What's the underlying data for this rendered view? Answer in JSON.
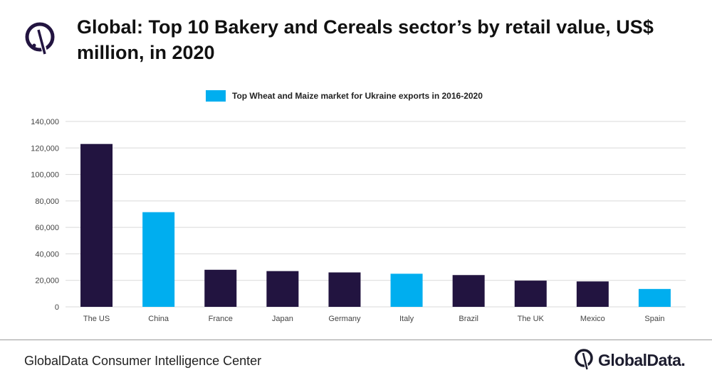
{
  "title": "Global: Top 10 Bakery and Cereals sector’s by retail value, US$ million, in 2020",
  "footer": "GlobalData Consumer Intelligence Center",
  "brand": "GlobalData.",
  "colors": {
    "primary": "#221440",
    "highlight": "#00aeef"
  },
  "icons": {
    "logo": "globaldata-logo-icon"
  },
  "chart_data": {
    "type": "bar",
    "title": "Global: Top 10 Bakery and Cereals sector’s by retail value, US$ million, in 2020",
    "xlabel": "",
    "ylabel": "",
    "ylim": [
      0,
      140000
    ],
    "yticks": [
      0,
      20000,
      40000,
      60000,
      80000,
      100000,
      120000,
      140000
    ],
    "ytick_labels": [
      "0",
      "20,000",
      "40,000",
      "60,000",
      "80,000",
      "100,000",
      "120,000",
      "140,000"
    ],
    "grid": true,
    "legend": {
      "label": "Top Wheat and Maize market for Ukraine exports in 2016-2020",
      "position": "top-center"
    },
    "categories": [
      "The US",
      "China",
      "France",
      "Japan",
      "Germany",
      "Italy",
      "Brazil",
      "The UK",
      "Mexico",
      "Spain"
    ],
    "values": [
      123000,
      71500,
      28000,
      27000,
      26000,
      25000,
      24000,
      19800,
      19200,
      13500
    ],
    "highlighted": [
      false,
      true,
      false,
      false,
      false,
      true,
      false,
      false,
      false,
      true
    ]
  }
}
